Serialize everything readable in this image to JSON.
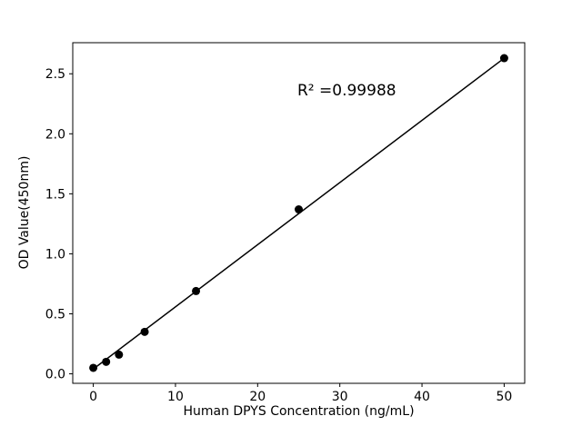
{
  "figure": {
    "background": "#ffffff"
  },
  "chart_data": {
    "type": "scatter",
    "title": "",
    "xlabel": "Human DPYS Concentration (ng/mL)",
    "ylabel": "OD Value(450nm)",
    "annotation": "R² =0.99988",
    "x": [
      0,
      1.5625,
      3.125,
      6.25,
      12.5,
      25,
      50
    ],
    "y": [
      0.05,
      0.1,
      0.16,
      0.35,
      0.69,
      1.37,
      2.63
    ],
    "fit_line": {
      "type": "linear",
      "x": [
        0,
        50
      ],
      "y": [
        0.04,
        2.63
      ]
    },
    "xlim": [
      -2.5,
      52.5
    ],
    "ylim": [
      -0.079,
      2.759
    ],
    "xticks": [
      0,
      10,
      20,
      30,
      40,
      50
    ],
    "xtick_labels": [
      "0",
      "10",
      "20",
      "30",
      "40",
      "50"
    ],
    "yticks": [
      0.0,
      0.5,
      1.0,
      1.5,
      2.0,
      2.5
    ],
    "ytick_labels": [
      "0.0",
      "0.5",
      "1.0",
      "1.5",
      "2.0",
      "2.5"
    ],
    "grid": false,
    "legend": null,
    "marker_color": "#000000",
    "line_color": "#000000",
    "axis_color": "#000000"
  }
}
